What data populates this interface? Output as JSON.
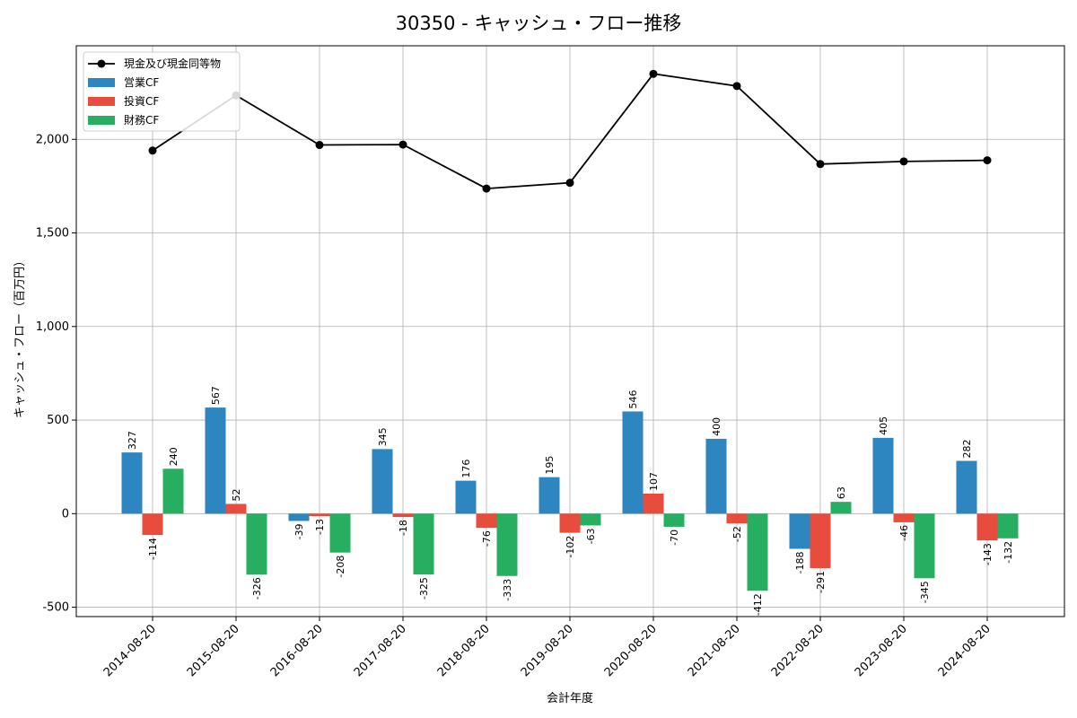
{
  "chart_data": {
    "type": "bar",
    "title": "30350 - キャッシュ・フロー推移",
    "xlabel": "会計年度",
    "ylabel": "キャッシュ・フロー（百万円）",
    "ylim": [
      -550,
      2500
    ],
    "grid": true,
    "legend_position": "top-left",
    "categories": [
      "2014-08-20",
      "2015-08-20",
      "2016-08-20",
      "2017-08-20",
      "2018-08-20",
      "2019-08-20",
      "2020-08-20",
      "2021-08-20",
      "2022-08-20",
      "2023-08-20",
      "2024-08-20"
    ],
    "y_ticks": [
      -500,
      0,
      500,
      1000,
      1500,
      2000
    ],
    "y_tick_labels": [
      "-500",
      "0",
      "500",
      "1,000",
      "1,500",
      "2,000"
    ],
    "series": [
      {
        "name": "営業CF",
        "kind": "bar",
        "color": "#2e86c1",
        "values": [
          327,
          567,
          -39,
          345,
          176,
          195,
          546,
          400,
          -188,
          405,
          282
        ],
        "labels": [
          "327",
          "567",
          "-39",
          "345",
          "176",
          "195",
          "546",
          "400",
          "-188",
          "405",
          "282"
        ]
      },
      {
        "name": "投資CF",
        "kind": "bar",
        "color": "#e74c3c",
        "values": [
          -114,
          52,
          -13,
          -18,
          -76,
          -102,
          107,
          -52,
          -291,
          -46,
          -143
        ],
        "labels": [
          "-114",
          "52",
          "-13",
          "-18",
          "-76",
          "-102",
          "107",
          "-52",
          "-291",
          "-46",
          "-143"
        ]
      },
      {
        "name": "財務CF",
        "kind": "bar",
        "color": "#27ae60",
        "values": [
          240,
          -326,
          -208,
          -325,
          -333,
          -63,
          -70,
          -412,
          63,
          -345,
          -132
        ],
        "labels": [
          "240",
          "-326",
          "-208",
          "-325",
          "-333",
          "-63",
          "-70",
          "-412",
          "63",
          "-345",
          "-132"
        ]
      },
      {
        "name": "現金及び現金同等物",
        "kind": "line",
        "color": "#000000",
        "values": [
          1940,
          2235,
          1970,
          1972,
          1737,
          1768,
          2350,
          2285,
          1868,
          1882,
          1888
        ]
      }
    ]
  }
}
